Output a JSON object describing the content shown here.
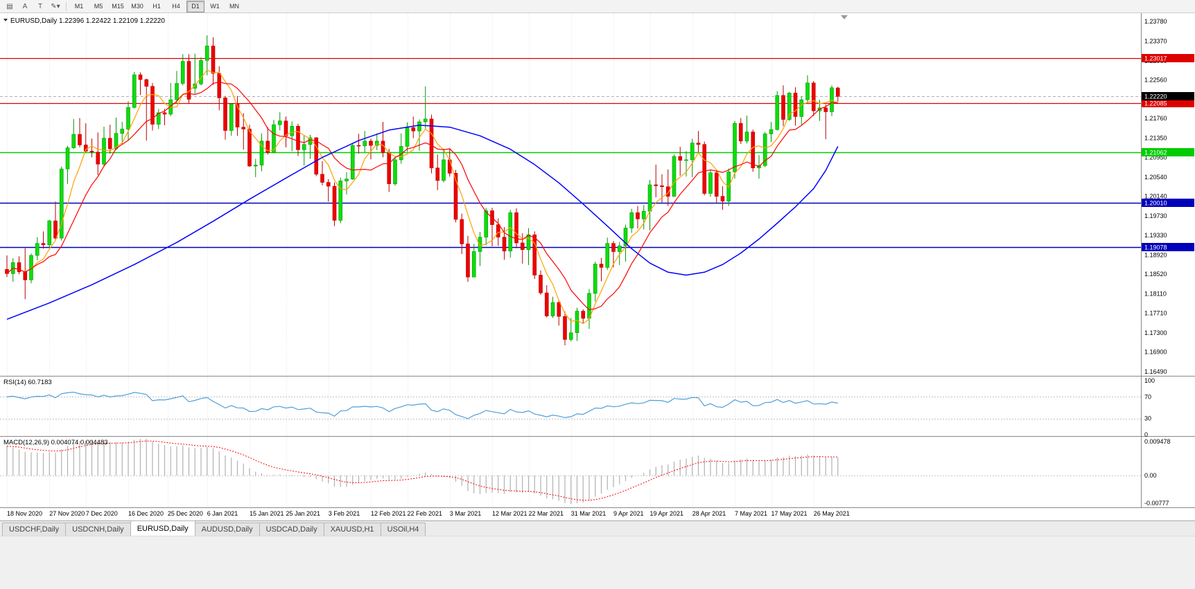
{
  "toolbar": {
    "icons": [
      {
        "name": "charts-grid-icon",
        "glyph": "▤"
      },
      {
        "name": "text-label-icon",
        "glyph": "A"
      },
      {
        "name": "template-icon",
        "glyph": "T"
      },
      {
        "name": "line-tools-dropdown-icon",
        "glyph": "✎▾"
      }
    ],
    "timeframes": [
      {
        "label": "M1",
        "active": false
      },
      {
        "label": "M5",
        "active": false
      },
      {
        "label": "M15",
        "active": false
      },
      {
        "label": "M30",
        "active": false
      },
      {
        "label": "H1",
        "active": false
      },
      {
        "label": "H4",
        "active": false
      },
      {
        "label": "D1",
        "active": true
      },
      {
        "label": "W1",
        "active": false
      },
      {
        "label": "MN",
        "active": false
      }
    ]
  },
  "tabs": [
    {
      "label": "USDCHF,Daily",
      "active": false
    },
    {
      "label": "USDCNH,Daily",
      "active": false
    },
    {
      "label": "EURUSD,Daily",
      "active": true
    },
    {
      "label": "AUDUSD,Daily",
      "active": false
    },
    {
      "label": "USDCAD,Daily",
      "active": false
    },
    {
      "label": "XAUUSD,H1",
      "active": false
    },
    {
      "label": "USOil,H4",
      "active": false
    }
  ],
  "chart_data": {
    "type": "candlestick",
    "symbol": "EURUSD",
    "timeframe": "Daily",
    "title_line": "EURUSD,Daily  1.22396 1.22422 1.22109 1.22220",
    "ohlc": {
      "open": "1.22396",
      "high": "1.22422",
      "low": "1.22109",
      "close": "1.22220"
    },
    "colors": {
      "up_body": "#0ddd0d",
      "up_edge": "#009900",
      "down_body": "#ee0000",
      "down_edge": "#bb0000",
      "ma_fast": "#ffa000",
      "ma_mid": "#ff0000",
      "ma_slow": "#0000ff",
      "res_line": "#dd0000",
      "sup_green": "#00cc00",
      "sup_blue": "#0000bb",
      "rsi_line": "#4f9ed9",
      "macd_bar": "#b0b0b0",
      "macd_signal": "#ff0000",
      "badge_black": "#000000",
      "grid": "#e4e4e4"
    },
    "price_ticks": [
      "1.23780",
      "1.23370",
      "1.22960",
      "1.22560",
      "1.22150",
      "1.21760",
      "1.21350",
      "1.20950",
      "1.20540",
      "1.20140",
      "1.19730",
      "1.19330",
      "1.18920",
      "1.18520",
      "1.18110",
      "1.17710",
      "1.17300",
      "1.16900",
      "1.16490"
    ],
    "hlines": [
      {
        "price": 1.23017,
        "label": "1.23017",
        "color": "#dd0000",
        "width": 1.2
      },
      {
        "price": 1.22085,
        "label": "1.22085",
        "color": "#dd0000",
        "width": 1.2
      },
      {
        "price": 1.21062,
        "label": "1.21062",
        "color": "#00cc00",
        "width": 1.5
      },
      {
        "price": 1.2001,
        "label": "1.20010",
        "color": "#0000bb",
        "width": 1.5
      },
      {
        "price": 1.19078,
        "label": "1.19078",
        "color": "#0000bb",
        "width": 1.5
      }
    ],
    "current_price": {
      "price": 1.2222,
      "label": "1.22220"
    },
    "date_ticks": [
      {
        "label": "18 Nov 2020",
        "i": 0
      },
      {
        "label": "27 Nov 2020",
        "i": 7
      },
      {
        "label": "7 Dec 2020",
        "i": 13
      },
      {
        "label": "16 Dec 2020",
        "i": 20
      },
      {
        "label": "25 Dec 2020",
        "i": 26.5
      },
      {
        "label": "6 Jan 2021",
        "i": 33
      },
      {
        "label": "15 Jan 2021",
        "i": 40
      },
      {
        "label": "25 Jan 2021",
        "i": 46
      },
      {
        "label": "3 Feb 2021",
        "i": 53
      },
      {
        "label": "12 Feb 2021",
        "i": 60
      },
      {
        "label": "22 Feb 2021",
        "i": 66
      },
      {
        "label": "3 Mar 2021",
        "i": 73
      },
      {
        "label": "12 Mar 2021",
        "i": 80
      },
      {
        "label": "22 Mar 2021",
        "i": 86
      },
      {
        "label": "31 Mar 2021",
        "i": 93
      },
      {
        "label": "9 Apr 2021",
        "i": 100
      },
      {
        "label": "19 Apr 2021",
        "i": 106
      },
      {
        "label": "28 Apr 2021",
        "i": 113
      },
      {
        "label": "7 May 2021",
        "i": 120
      },
      {
        "label": "17 May 2021",
        "i": 126
      },
      {
        "label": "26 May 2021",
        "i": 133
      }
    ],
    "candles": [
      [
        1.1862,
        1.1891,
        1.1846,
        1.1853
      ],
      [
        1.1853,
        1.1885,
        1.1836,
        1.1876
      ],
      [
        1.1876,
        1.1889,
        1.1852,
        1.1857
      ],
      [
        1.1857,
        1.1906,
        1.18,
        1.184
      ],
      [
        1.184,
        1.1895,
        1.1833,
        1.1891
      ],
      [
        1.1891,
        1.1929,
        1.1881,
        1.1916
      ],
      [
        1.1916,
        1.1941,
        1.1905,
        1.1913
      ],
      [
        1.1913,
        1.1965,
        1.1908,
        1.1963
      ],
      [
        1.1963,
        1.2003,
        1.1924,
        1.1927
      ],
      [
        1.1927,
        1.2076,
        1.1922,
        1.2071
      ],
      [
        1.2071,
        1.2119,
        1.204,
        1.2115
      ],
      [
        1.2115,
        1.2175,
        1.2113,
        1.2143
      ],
      [
        1.2143,
        1.2177,
        1.2116,
        1.2121
      ],
      [
        1.2121,
        1.2166,
        1.2105,
        1.2108
      ],
      [
        1.2108,
        1.2134,
        1.2095,
        1.2106
      ],
      [
        1.2106,
        1.2147,
        1.2058,
        1.2081
      ],
      [
        1.2081,
        1.2159,
        1.2076,
        1.2135
      ],
      [
        1.2135,
        1.2163,
        1.2103,
        1.2113
      ],
      [
        1.2113,
        1.2178,
        1.211,
        1.2145
      ],
      [
        1.2145,
        1.2169,
        1.2123,
        1.2154
      ],
      [
        1.2154,
        1.2212,
        1.213,
        1.2199
      ],
      [
        1.2199,
        1.2273,
        1.2197,
        1.2267
      ],
      [
        1.2267,
        1.2272,
        1.2225,
        1.2257
      ],
      [
        1.2257,
        1.2259,
        1.213,
        1.2243
      ],
      [
        1.2243,
        1.225,
        1.2151,
        1.2164
      ],
      [
        1.2164,
        1.2196,
        1.2154,
        1.2188
      ],
      [
        1.2188,
        1.2196,
        1.2162,
        1.2185
      ],
      [
        1.2185,
        1.225,
        1.2181,
        1.2215
      ],
      [
        1.2215,
        1.2275,
        1.2208,
        1.2249
      ],
      [
        1.2249,
        1.231,
        1.2245,
        1.2295
      ],
      [
        1.2295,
        1.231,
        1.2208,
        1.2216
      ],
      [
        1.2239,
        1.2311,
        1.2228,
        1.2248
      ],
      [
        1.2248,
        1.2303,
        1.2245,
        1.2297
      ],
      [
        1.2297,
        1.2349,
        1.2266,
        1.2327
      ],
      [
        1.2327,
        1.2345,
        1.2246,
        1.227
      ],
      [
        1.227,
        1.2285,
        1.2193,
        1.2219
      ],
      [
        1.2219,
        1.2223,
        1.2132,
        1.2151
      ],
      [
        1.2151,
        1.2208,
        1.214,
        1.2206
      ],
      [
        1.2206,
        1.2223,
        1.214,
        1.2158
      ],
      [
        1.2158,
        1.2187,
        1.2111,
        1.2154
      ],
      [
        1.2154,
        1.2163,
        1.2075,
        1.2077
      ],
      [
        1.2077,
        1.2092,
        1.2054,
        1.2079
      ],
      [
        1.2079,
        1.2145,
        1.2066,
        1.2129
      ],
      [
        1.2129,
        1.2158,
        1.2101,
        1.2105
      ],
      [
        1.2105,
        1.2173,
        1.2104,
        1.2163
      ],
      [
        1.2163,
        1.2189,
        1.2151,
        1.2171
      ],
      [
        1.2171,
        1.218,
        1.2116,
        1.214
      ],
      [
        1.214,
        1.217,
        1.2108,
        1.216
      ],
      [
        1.216,
        1.2165,
        1.2098,
        1.2111
      ],
      [
        1.2111,
        1.2141,
        1.2078,
        1.2122
      ],
      [
        1.2122,
        1.2142,
        1.2092,
        1.2136
      ],
      [
        1.2136,
        1.2137,
        1.2056,
        1.206
      ],
      [
        1.206,
        1.2087,
        1.2037,
        1.2043
      ],
      [
        1.2043,
        1.205,
        1.2003,
        1.2035
      ],
      [
        1.2035,
        1.2043,
        1.1952,
        1.1964
      ],
      [
        1.1964,
        1.2053,
        1.1958,
        1.2046
      ],
      [
        1.2046,
        1.2064,
        1.2018,
        1.205
      ],
      [
        1.205,
        1.2123,
        1.2048,
        1.212
      ],
      [
        1.212,
        1.2144,
        1.2103,
        1.2119
      ],
      [
        1.2119,
        1.215,
        1.2106,
        1.2129
      ],
      [
        1.2129,
        1.2134,
        1.2091,
        1.212
      ],
      [
        1.212,
        1.2145,
        1.211,
        1.2129
      ],
      [
        1.2129,
        1.2169,
        1.2095,
        1.2105
      ],
      [
        1.2105,
        1.2113,
        1.2023,
        1.204
      ],
      [
        1.204,
        1.2098,
        1.2036,
        1.209
      ],
      [
        1.209,
        1.2145,
        1.2082,
        1.2118
      ],
      [
        1.2118,
        1.2168,
        1.2107,
        1.2157
      ],
      [
        1.2157,
        1.218,
        1.2135,
        1.215
      ],
      [
        1.215,
        1.2174,
        1.2109,
        1.2169
      ],
      [
        1.2169,
        1.2243,
        1.2155,
        1.2175
      ],
      [
        1.2175,
        1.2184,
        1.2062,
        1.2073
      ],
      [
        1.2073,
        1.2101,
        1.2027,
        1.2047
      ],
      [
        1.2047,
        1.2113,
        1.2043,
        1.209
      ],
      [
        1.209,
        1.2114,
        1.2055,
        1.2062
      ],
      [
        1.2062,
        1.2069,
        1.196,
        1.1966
      ],
      [
        1.1966,
        1.1978,
        1.1894,
        1.1915
      ],
      [
        1.1915,
        1.1932,
        1.1836,
        1.1846
      ],
      [
        1.1846,
        1.1915,
        1.1846,
        1.1899
      ],
      [
        1.1899,
        1.194,
        1.1869,
        1.1929
      ],
      [
        1.1929,
        1.199,
        1.1912,
        1.1984
      ],
      [
        1.1984,
        1.199,
        1.191,
        1.1955
      ],
      [
        1.1955,
        1.1968,
        1.1911,
        1.1929
      ],
      [
        1.1929,
        1.195,
        1.1882,
        1.19
      ],
      [
        1.19,
        1.1986,
        1.1886,
        1.198
      ],
      [
        1.198,
        1.1989,
        1.1906,
        1.1917
      ],
      [
        1.1917,
        1.1937,
        1.1874,
        1.1903
      ],
      [
        1.1903,
        1.1948,
        1.1871,
        1.1934
      ],
      [
        1.1934,
        1.1941,
        1.1842,
        1.185
      ],
      [
        1.185,
        1.186,
        1.1809,
        1.1813
      ],
      [
        1.1813,
        1.1829,
        1.1762,
        1.1765
      ],
      [
        1.1765,
        1.1805,
        1.1761,
        1.1793
      ],
      [
        1.1793,
        1.1798,
        1.1745,
        1.1764
      ],
      [
        1.1764,
        1.1774,
        1.1704,
        1.1716
      ],
      [
        1.1716,
        1.1761,
        1.1712,
        1.173
      ],
      [
        1.173,
        1.1782,
        1.1713,
        1.1775
      ],
      [
        1.1775,
        1.1779,
        1.1749,
        1.176
      ],
      [
        1.176,
        1.1821,
        1.1738,
        1.1812
      ],
      [
        1.1812,
        1.1878,
        1.1795,
        1.1873
      ],
      [
        1.1873,
        1.1886,
        1.1837,
        1.1866
      ],
      [
        1.1866,
        1.1928,
        1.1861,
        1.1916
      ],
      [
        1.1916,
        1.1921,
        1.1866,
        1.1899
      ],
      [
        1.1899,
        1.1919,
        1.1871,
        1.1911
      ],
      [
        1.1911,
        1.1955,
        1.1878,
        1.1948
      ],
      [
        1.1948,
        1.1988,
        1.1938,
        1.198
      ],
      [
        1.198,
        1.1994,
        1.1947,
        1.1967
      ],
      [
        1.1967,
        1.1996,
        1.1945,
        1.1983
      ],
      [
        1.1983,
        1.2048,
        1.1943,
        1.2038
      ],
      [
        1.2038,
        1.208,
        1.2012,
        1.2036
      ],
      [
        1.2036,
        1.206,
        1.2001,
        1.2034
      ],
      [
        1.2034,
        1.207,
        1.1994,
        1.2014
      ],
      [
        1.2014,
        1.2101,
        1.2013,
        1.2097
      ],
      [
        1.2097,
        1.2117,
        1.2057,
        1.2089
      ],
      [
        1.2089,
        1.2108,
        1.2055,
        1.209
      ],
      [
        1.209,
        1.2134,
        1.2054,
        1.2125
      ],
      [
        1.2125,
        1.215,
        1.2103,
        1.2122
      ],
      [
        1.2122,
        1.2128,
        1.2016,
        1.202
      ],
      [
        1.202,
        1.2068,
        1.2013,
        1.2063
      ],
      [
        1.2063,
        1.2067,
        1.1999,
        1.2014
      ],
      [
        1.2014,
        1.2035,
        1.1986,
        1.2004
      ],
      [
        1.2004,
        1.2072,
        1.1994,
        1.2065
      ],
      [
        1.2065,
        1.2171,
        1.2051,
        1.2166
      ],
      [
        1.2166,
        1.2177,
        1.2123,
        1.2129
      ],
      [
        1.2129,
        1.2182,
        1.2124,
        1.2148
      ],
      [
        1.2148,
        1.2153,
        1.2065,
        1.2073
      ],
      [
        1.2073,
        1.21,
        1.2051,
        1.2078
      ],
      [
        1.2078,
        1.2148,
        1.2075,
        1.2144
      ],
      [
        1.2144,
        1.2169,
        1.2127,
        1.2153
      ],
      [
        1.2153,
        1.2233,
        1.2151,
        1.2224
      ],
      [
        1.2224,
        1.2245,
        1.216,
        1.2174
      ],
      [
        1.2174,
        1.2231,
        1.2171,
        1.2229
      ],
      [
        1.2229,
        1.2241,
        1.2161,
        1.218
      ],
      [
        1.218,
        1.2222,
        1.2163,
        1.2215
      ],
      [
        1.2215,
        1.2266,
        1.2207,
        1.225
      ],
      [
        1.225,
        1.2254,
        1.2181,
        1.2192
      ],
      [
        1.2192,
        1.2215,
        1.2171,
        1.2198
      ],
      [
        1.2198,
        1.2205,
        1.2133,
        1.219
      ],
      [
        1.219,
        1.2245,
        1.2181,
        1.224
      ],
      [
        1.22396,
        1.22422,
        1.22109,
        1.2222
      ]
    ],
    "ma": {
      "fast_period": 5,
      "mid_period": 10,
      "slow_points": [
        [
          0,
          1.1758
        ],
        [
          7,
          1.1792
        ],
        [
          14,
          1.183
        ],
        [
          21,
          1.1872
        ],
        [
          28,
          1.1918
        ],
        [
          34,
          1.1962
        ],
        [
          40,
          1.2008
        ],
        [
          46,
          1.2052
        ],
        [
          52,
          1.2095
        ],
        [
          58,
          1.213
        ],
        [
          63,
          1.2152
        ],
        [
          68,
          1.2162
        ],
        [
          73,
          1.2158
        ],
        [
          78,
          1.214
        ],
        [
          83,
          1.2112
        ],
        [
          87,
          1.208
        ],
        [
          91,
          1.2042
        ],
        [
          95,
          1.1998
        ],
        [
          99,
          1.1952
        ],
        [
          103,
          1.1905
        ],
        [
          106,
          1.1875
        ],
        [
          109,
          1.1856
        ],
        [
          112,
          1.185
        ],
        [
          115,
          1.1856
        ],
        [
          118,
          1.1872
        ],
        [
          121,
          1.1896
        ],
        [
          124,
          1.1925
        ],
        [
          127,
          1.1958
        ],
        [
          130,
          1.1992
        ],
        [
          133,
          1.203
        ],
        [
          135,
          1.2068
        ],
        [
          137,
          1.2118
        ]
      ]
    },
    "rsi": {
      "label": "RSI(14) 60.7183",
      "period": 14,
      "levels": [
        {
          "label": "100",
          "v": 100
        },
        {
          "label": "70",
          "v": 70
        },
        {
          "label": "30",
          "v": 30
        },
        {
          "label": "0",
          "v": 0
        }
      ],
      "dotted_levels": [
        70,
        30
      ],
      "seed": {
        "gain": 0.0028,
        "loss": 0.0012
      }
    },
    "macd": {
      "label": "MACD(12,26,9) 0.004074 0.004483",
      "axis_labels": [
        {
          "label": "0.009478",
          "v": 0.009478
        },
        {
          "label": "0.00",
          "v": 0
        },
        {
          "label": "-0.00777",
          "v": -0.00777
        }
      ],
      "seed": {
        "ema12": 1.1848,
        "ema26": 1.176
      }
    }
  }
}
